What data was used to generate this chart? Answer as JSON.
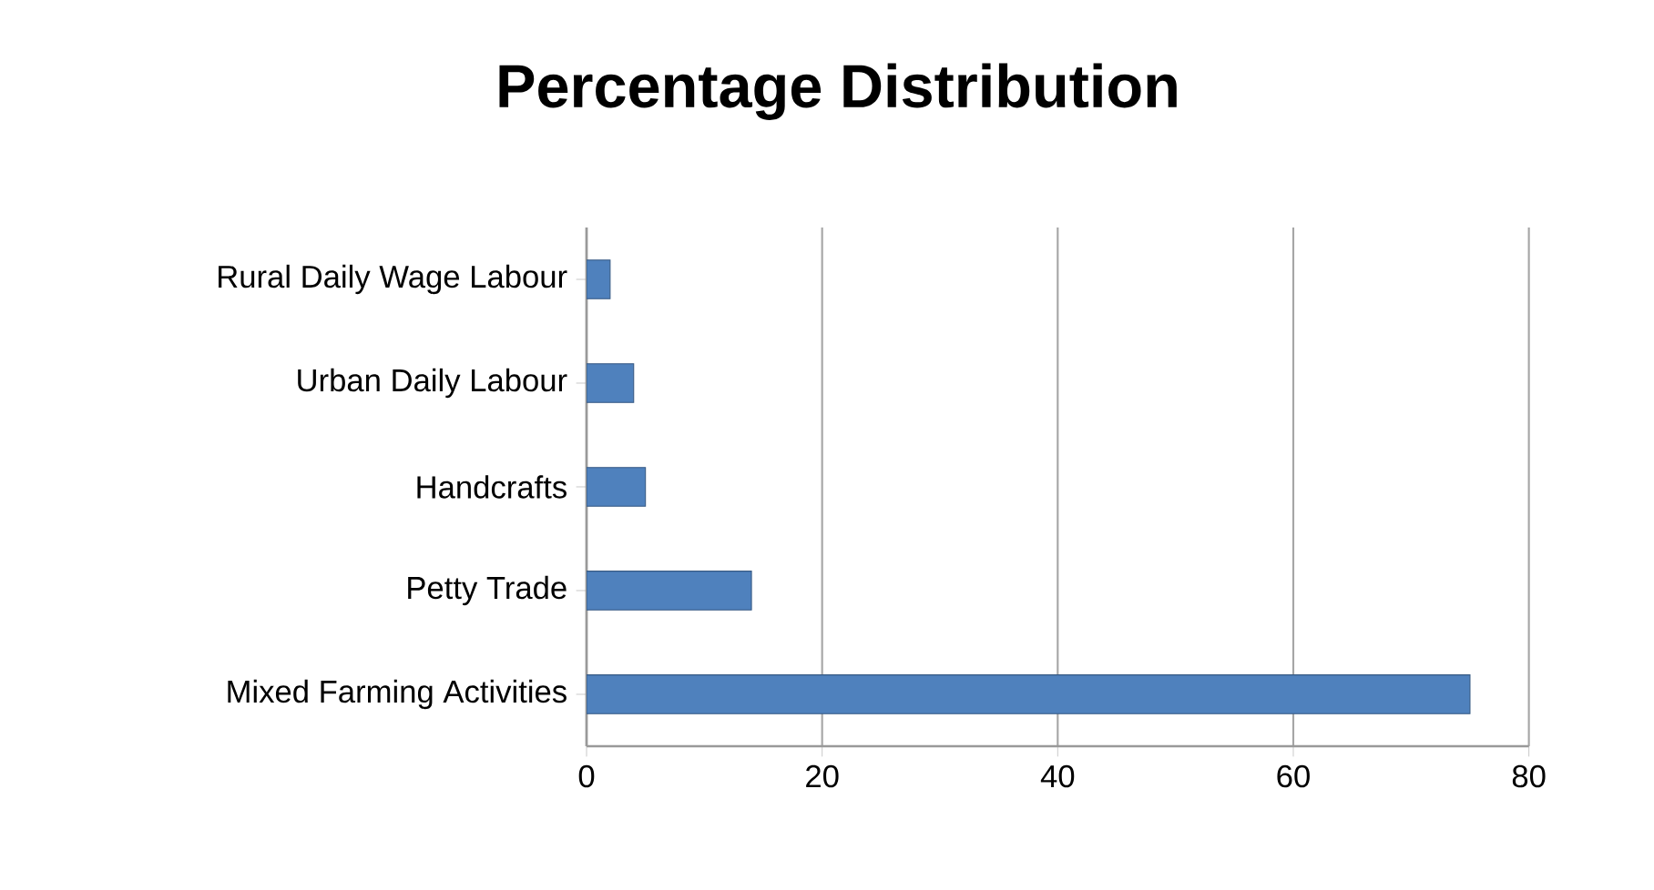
{
  "chart_data": {
    "type": "bar",
    "orientation": "horizontal",
    "title": "Percentage Distribution",
    "categories": [
      "Rural Daily Wage Labour",
      "Urban Daily Labour",
      "Handcrafts",
      "Petty Trade",
      "Mixed Farming Activities"
    ],
    "values": [
      2,
      4,
      5,
      14,
      75
    ],
    "color": "#4f81bd",
    "xlim": [
      0,
      80
    ],
    "xticks": [
      0,
      20,
      40,
      60,
      80
    ],
    "grid": "x"
  }
}
